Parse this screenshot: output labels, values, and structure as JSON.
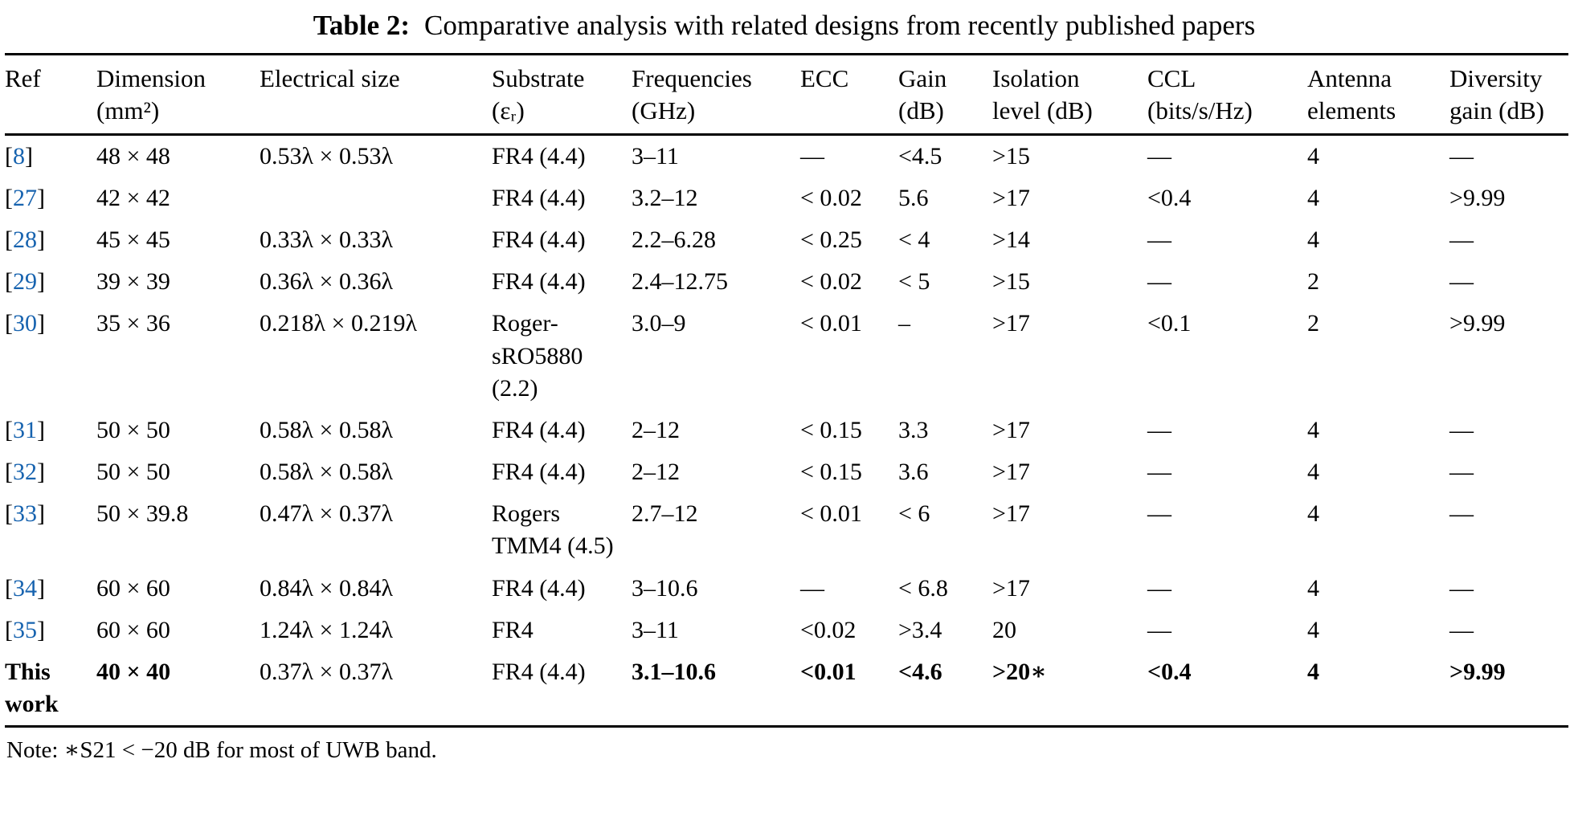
{
  "title": {
    "label": "Table 2:",
    "text": "Comparative analysis with related designs from recently published papers"
  },
  "note": "Note: ∗S21 < −20 dB for most of UWB band.",
  "link_color": "#1763af",
  "table": {
    "headers": [
      [
        "Ref"
      ],
      [
        "Dimension",
        "(mm²)"
      ],
      [
        "Electrical size"
      ],
      [
        "Substrate",
        "(εᵣ)"
      ],
      [
        "Frequencies",
        "(GHz)"
      ],
      [
        "ECC"
      ],
      [
        "Gain",
        "(dB)"
      ],
      [
        "Isolation",
        "level (dB)"
      ],
      [
        "CCL",
        "(bits/s/Hz)"
      ],
      [
        "Antenna",
        "elements"
      ],
      [
        "Diversity",
        "gain (dB)"
      ]
    ],
    "rows": [
      {
        "ref": "8",
        "ref_plain": false,
        "bold": false,
        "cells": [
          "48 × 48",
          "0.53λ × 0.53λ",
          "FR4 (4.4)",
          "3–11",
          "—",
          "<4.5",
          ">15",
          "—",
          "4",
          "—"
        ]
      },
      {
        "ref": "27",
        "ref_plain": false,
        "bold": false,
        "cells": [
          "42 × 42",
          "",
          "FR4 (4.4)",
          "3.2–12",
          "< 0.02",
          "5.6",
          ">17",
          "<0.4",
          "4",
          ">9.99"
        ]
      },
      {
        "ref": "28",
        "ref_plain": false,
        "bold": false,
        "cells": [
          "45 × 45",
          "0.33λ × 0.33λ",
          "FR4 (4.4)",
          "2.2–6.28",
          "< 0.25",
          "< 4",
          ">14",
          "—",
          "4",
          "—"
        ]
      },
      {
        "ref": "29",
        "ref_plain": false,
        "bold": false,
        "cells": [
          "39 × 39",
          "0.36λ × 0.36λ",
          "FR4 (4.4)",
          "2.4–12.75",
          "< 0.02",
          "< 5",
          ">15",
          "—",
          "2",
          "—"
        ]
      },
      {
        "ref": "30",
        "ref_plain": false,
        "bold": false,
        "cells": [
          "35 × 36",
          "0.218λ × 0.219λ",
          "Roger-sRO5880 (2.2)",
          "3.0–9",
          "< 0.01",
          "–",
          ">17",
          "<0.1",
          "2",
          ">9.99"
        ]
      },
      {
        "ref": "31",
        "ref_plain": false,
        "bold": false,
        "cells": [
          "50 × 50",
          "0.58λ × 0.58λ",
          "FR4 (4.4)",
          "2–12",
          "< 0.15",
          "3.3",
          ">17",
          "—",
          "4",
          "—"
        ]
      },
      {
        "ref": "32",
        "ref_plain": false,
        "bold": false,
        "cells": [
          "50 × 50",
          "0.58λ × 0.58λ",
          "FR4 (4.4)",
          "2–12",
          "< 0.15",
          "3.6",
          ">17",
          "—",
          "4",
          "—"
        ]
      },
      {
        "ref": "33",
        "ref_plain": false,
        "bold": false,
        "cells": [
          "50 × 39.8",
          "0.47λ × 0.37λ",
          "Rogers TMM4 (4.5)",
          "2.7–12",
          "< 0.01",
          "< 6",
          ">17",
          "—",
          "4",
          "—"
        ]
      },
      {
        "ref": "34",
        "ref_plain": false,
        "bold": false,
        "cells": [
          "60 × 60",
          "0.84λ × 0.84λ",
          "FR4 (4.4)",
          "3–10.6",
          "—",
          "< 6.8",
          ">17",
          "—",
          "4",
          "—"
        ]
      },
      {
        "ref": "35",
        "ref_plain": false,
        "bold": false,
        "cells": [
          "60 × 60",
          "1.24λ × 1.24λ",
          "FR4",
          "3–11",
          "<0.02",
          ">3.4",
          "20",
          "—",
          "4",
          "—"
        ]
      },
      {
        "ref": "This work",
        "ref_plain": true,
        "bold": true,
        "bold_cells": [
          true,
          false,
          false,
          true,
          true,
          true,
          true,
          true,
          true,
          true
        ],
        "cells": [
          "40 × 40",
          "0.37λ × 0.37λ",
          "FR4 (4.4)",
          "3.1–10.6",
          "<0.01",
          "<4.6",
          ">20∗",
          "<0.4",
          "4",
          ">9.99"
        ]
      }
    ]
  }
}
